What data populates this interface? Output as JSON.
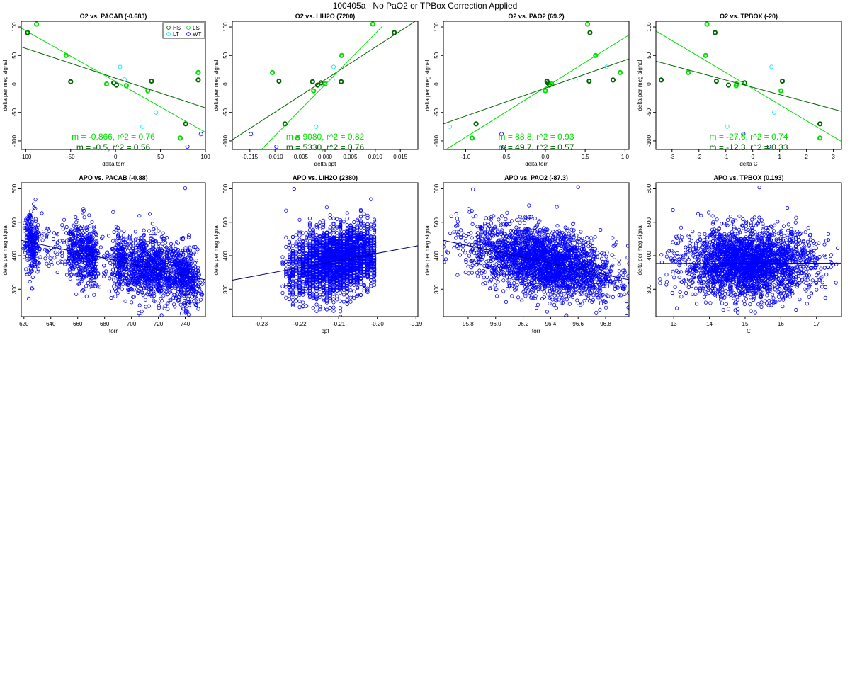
{
  "page": {
    "title": "100405a   No PaO2 or TPBox Correction Applied"
  },
  "colors": {
    "HS": "#006400",
    "LS": "#00e000",
    "LT": "#00e5ee",
    "WT": "#0000ff",
    "fit_dark": "#006400",
    "fit_light": "#00e000",
    "fit_blue": "#00008b"
  },
  "chart_data": [
    {
      "id": "o2-pacab",
      "type": "scatter",
      "title": "O2 vs. PACAB (-0.683)",
      "xlabel": "delta torr",
      "ylabel": "delta per meg signal",
      "xlim": [
        -105,
        100
      ],
      "ylim": [
        -115,
        110
      ],
      "xticks": [
        -100,
        -50,
        0,
        50,
        100
      ],
      "yticks": [
        -100,
        -50,
        0,
        50,
        100
      ],
      "legend": {
        "position": "top-right",
        "entries": [
          "HS",
          "LS",
          "LT",
          "WT"
        ],
        "labels": [
          "HS",
          "LS",
          "LT",
          "WT"
        ]
      },
      "series": [
        {
          "name": "HS",
          "bold": true,
          "points": [
            [
              -98,
              90
            ],
            [
              -50,
              4
            ],
            [
              -2,
              2
            ],
            [
              1,
              -2
            ],
            [
              40,
              5
            ],
            [
              92,
              7
            ],
            [
              78,
              -70
            ]
          ]
        },
        {
          "name": "LS",
          "bold": true,
          "points": [
            [
              -88,
              105
            ],
            [
              -55,
              50
            ],
            [
              -10,
              0
            ],
            [
              12,
              -3
            ],
            [
              36,
              -12
            ],
            [
              92,
              20
            ],
            [
              72,
              -95
            ]
          ]
        },
        {
          "name": "LT",
          "bold": false,
          "points": [
            [
              5,
              30
            ],
            [
              10,
              8
            ],
            [
              30,
              -75
            ],
            [
              45,
              -50
            ]
          ]
        },
        {
          "name": "WT",
          "bold": false,
          "points": [
            [
              95,
              -88
            ],
            [
              80,
              -110
            ]
          ]
        }
      ],
      "fits": [
        {
          "color": "fit_dark",
          "x": [
            -105,
            100
          ],
          "y": [
            65,
            -42
          ]
        },
        {
          "color": "fit_light",
          "x": [
            -105,
            100
          ],
          "y": [
            98,
            -85
          ]
        }
      ],
      "annotations": [
        {
          "text": "m = -0.866, r^2 = 0.76",
          "color": "fit_light"
        },
        {
          "text": "m = -0.5, r^2 = 0.56",
          "color": "fit_dark"
        }
      ]
    },
    {
      "id": "o2-lih2o",
      "type": "scatter",
      "title": "O2 vs. LIH2O (7200)",
      "xlabel": "delta ppt",
      "ylabel": "delta per meg signal",
      "xlim": [
        -0.0185,
        0.0185
      ],
      "ylim": [
        -115,
        110
      ],
      "xticks": [
        -0.015,
        -0.01,
        -0.005,
        0,
        0.005,
        0.01,
        0.015
      ],
      "xtick_labels": [
        "-0.015",
        "-0.010",
        "-0.005",
        "0.000",
        "0.005",
        "0.010",
        "0.015"
      ],
      "yticks": [
        -100,
        -50,
        0,
        50,
        100
      ],
      "series": [
        {
          "name": "HS",
          "bold": true,
          "points": [
            [
              -0.0092,
              5
            ],
            [
              -0.008,
              -70
            ],
            [
              -0.0025,
              4
            ],
            [
              -0.0015,
              -2
            ],
            [
              -0.0008,
              2
            ],
            [
              0.0032,
              4
            ],
            [
              0.0138,
              90
            ]
          ]
        },
        {
          "name": "LS",
          "bold": true,
          "points": [
            [
              -0.0105,
              20
            ],
            [
              -0.0023,
              -12
            ],
            [
              0,
              0
            ],
            [
              0.0033,
              50
            ],
            [
              0.0095,
              105
            ],
            [
              -0.0055,
              -95
            ]
          ]
        },
        {
          "name": "LT",
          "bold": false,
          "points": [
            [
              0.0017,
              30
            ],
            [
              0.0015,
              8
            ],
            [
              -0.0018,
              -75
            ]
          ]
        },
        {
          "name": "WT",
          "bold": false,
          "points": [
            [
              -0.0148,
              -88
            ],
            [
              -0.0097,
              -110
            ]
          ]
        }
      ],
      "fits": [
        {
          "color": "fit_dark",
          "x": [
            -0.0185,
            0.0185
          ],
          "y": [
            -98,
            113
          ]
        },
        {
          "color": "fit_light",
          "x": [
            -0.0138,
            0.0115
          ],
          "y": [
            -125,
            102
          ]
        }
      ],
      "annotations": [
        {
          "text": "m = 9080, r^2 = 0.82",
          "color": "fit_light"
        },
        {
          "text": "m = 5330, r^2 = 0.76",
          "color": "fit_dark"
        }
      ]
    },
    {
      "id": "o2-pao2",
      "type": "scatter",
      "title": "O2 vs. PAO2 (69.2)",
      "xlabel": "delta torr",
      "ylabel": "delta per meg signal",
      "xlim": [
        -1.28,
        1.05
      ],
      "ylim": [
        -115,
        110
      ],
      "xticks": [
        -1,
        -0.5,
        0,
        0.5,
        1
      ],
      "xtick_labels": [
        "-1.0",
        "-0.5",
        "0.0",
        "0.5",
        "1.0"
      ],
      "yticks": [
        -100,
        -50,
        0,
        50,
        100
      ],
      "series": [
        {
          "name": "HS",
          "bold": true,
          "points": [
            [
              -0.87,
              -70
            ],
            [
              0.02,
              5
            ],
            [
              0.03,
              2
            ],
            [
              0.05,
              -2
            ],
            [
              0.55,
              5
            ],
            [
              0.85,
              7
            ],
            [
              0.56,
              90
            ]
          ]
        },
        {
          "name": "LS",
          "bold": true,
          "points": [
            [
              -0.92,
              -95
            ],
            [
              0,
              -12
            ],
            [
              0.08,
              0
            ],
            [
              0.53,
              105
            ],
            [
              0.63,
              50
            ],
            [
              0.94,
              20
            ]
          ]
        },
        {
          "name": "LT",
          "bold": false,
          "points": [
            [
              -1.2,
              -75
            ],
            [
              0.38,
              8
            ],
            [
              0.77,
              30
            ]
          ]
        },
        {
          "name": "WT",
          "bold": false,
          "points": [
            [
              -0.52,
              -110
            ],
            [
              -0.55,
              -88
            ]
          ]
        }
      ],
      "fits": [
        {
          "color": "fit_dark",
          "x": [
            -1.28,
            1.05
          ],
          "y": [
            -70,
            44
          ]
        },
        {
          "color": "fit_light",
          "x": [
            -1.28,
            1.05
          ],
          "y": [
            -118,
            86
          ]
        }
      ],
      "annotations": [
        {
          "text": "m = 88.8, r^2 = 0.93",
          "color": "fit_light"
        },
        {
          "text": "m = 49.7, r^2 = 0.57",
          "color": "fit_dark"
        }
      ]
    },
    {
      "id": "o2-tpbox",
      "type": "scatter",
      "title": "O2 vs. TPBOX (-20)",
      "xlabel": "delta C",
      "ylabel": "delta per meg signal",
      "xlim": [
        -3.6,
        3.3
      ],
      "ylim": [
        -115,
        110
      ],
      "xticks": [
        -3,
        -2,
        -1,
        0,
        1,
        2,
        3
      ],
      "yticks": [
        -100,
        -50,
        0,
        50,
        100
      ],
      "series": [
        {
          "name": "HS",
          "bold": true,
          "points": [
            [
              -3.4,
              7
            ],
            [
              -1.4,
              90
            ],
            [
              -1.35,
              5
            ],
            [
              -0.9,
              -2
            ],
            [
              -0.3,
              2
            ],
            [
              1.1,
              5
            ],
            [
              2.5,
              -70
            ]
          ]
        },
        {
          "name": "LS",
          "bold": true,
          "points": [
            [
              -2.4,
              20
            ],
            [
              -1.7,
              105
            ],
            [
              -1.75,
              50
            ],
            [
              -0.6,
              0
            ],
            [
              -0.62,
              -3
            ],
            [
              1.05,
              -12
            ],
            [
              2.5,
              -95
            ]
          ]
        },
        {
          "name": "LT",
          "bold": false,
          "points": [
            [
              0.7,
              30
            ],
            [
              -0.95,
              -75
            ],
            [
              0.8,
              -50
            ]
          ]
        },
        {
          "name": "WT",
          "bold": false,
          "points": [
            [
              -0.35,
              -88
            ],
            [
              0.6,
              -110
            ]
          ]
        }
      ],
      "fits": [
        {
          "color": "fit_dark",
          "x": [
            -3.6,
            3.3
          ],
          "y": [
            40,
            -48
          ]
        },
        {
          "color": "fit_light",
          "x": [
            -3.6,
            3.3
          ],
          "y": [
            93,
            -101
          ]
        }
      ],
      "annotations": [
        {
          "text": "m = -27.6, r^2 = 0.74",
          "color": "fit_light"
        },
        {
          "text": "m = -12.3, r^2 = 0.33",
          "color": "fit_dark"
        }
      ]
    },
    {
      "id": "apo-pacab",
      "type": "scatter",
      "title": "APO vs. PACAB (-0.88)",
      "xlabel": "torr",
      "ylabel": "delta per meg signal",
      "xlim": [
        618,
        755
      ],
      "ylim": [
        218,
        618
      ],
      "xticks": [
        620,
        640,
        660,
        680,
        700,
        720,
        740
      ],
      "yticks": [
        300,
        400,
        500,
        600
      ],
      "fits": [
        {
          "color": "fit_blue",
          "x": [
            618,
            755
          ],
          "y": [
            446,
            328
          ]
        }
      ],
      "cloud": {
        "color": "WT",
        "n": 2300,
        "clusters": [
          [
            626,
            3,
            0.12
          ],
          [
            656,
            2,
            0.05
          ],
          [
            662,
            2,
            0.06
          ],
          [
            669,
            3,
            0.12
          ],
          [
            691,
            2,
            0.08
          ],
          [
            710,
            10,
            0.3
          ],
          [
            724,
            8,
            0.12
          ],
          [
            741,
            5,
            0.15
          ]
        ],
        "a": 446,
        "b": -0.86,
        "x0": 618,
        "sd": 45,
        "scatter_x": [
          620,
          752,
          0.15
        ],
        "extra_points": [
          [
            740,
            602
          ]
        ]
      }
    },
    {
      "id": "apo-lih2o",
      "type": "scatter",
      "title": "APO vs. LIH2O (2380)",
      "xlabel": "ppt",
      "ylabel": "delta per meg signal",
      "xlim": [
        -0.2375,
        -0.1895
      ],
      "ylim": [
        218,
        618
      ],
      "xticks": [
        -0.23,
        -0.22,
        -0.21,
        -0.2,
        -0.19
      ],
      "xtick_labels": [
        "-0.23",
        "-0.22",
        "-0.21",
        "-0.20",
        "-0.19"
      ],
      "yticks": [
        300,
        400,
        500,
        600
      ],
      "fits": [
        {
          "color": "fit_blue",
          "x": [
            -0.2375,
            -0.1895
          ],
          "y": [
            327,
            430
          ]
        }
      ],
      "cloud": {
        "color": "WT",
        "n": 2500,
        "columns": {
          "start": -0.2245,
          "end": -0.2005,
          "step": 0.00088,
          "center": -0.21,
          "spread": 0.007
        },
        "a": 327,
        "b": 2146,
        "x0": -0.2375,
        "sd": 50,
        "extra_points": [
          [
            -0.2215,
            600
          ]
        ]
      }
    },
    {
      "id": "apo-pao2",
      "type": "scatter",
      "title": "APO vs. PAO2 (-87.3)",
      "xlabel": "torr",
      "ylabel": "delta per meg signal",
      "xlim": [
        95.62,
        96.97
      ],
      "ylim": [
        218,
        618
      ],
      "xticks": [
        95.8,
        96,
        96.2,
        96.4,
        96.6,
        96.8
      ],
      "xtick_labels": [
        "95.8",
        "96.0",
        "96.2",
        "96.4",
        "96.6",
        "96.8"
      ],
      "yticks": [
        300,
        400,
        500,
        600
      ],
      "fits": [
        {
          "color": "fit_blue",
          "x": [
            95.62,
            96.97
          ],
          "y": [
            446,
            328
          ]
        }
      ],
      "cloud": {
        "color": "WT",
        "n": 2600,
        "normal": {
          "center": 96.35,
          "spread": 0.26
        },
        "a": 446,
        "b": -87.3,
        "x0": 95.62,
        "sd": 48,
        "extra_points": [
          [
            96.6,
            605
          ]
        ]
      }
    },
    {
      "id": "apo-tpbox",
      "type": "scatter",
      "title": "APO vs. TPBOX (0.193)",
      "xlabel": "C",
      "ylabel": "delta per meg signal",
      "xlim": [
        12.5,
        17.7
      ],
      "ylim": [
        218,
        618
      ],
      "xticks": [
        13,
        14,
        15,
        16,
        17
      ],
      "yticks": [
        300,
        400,
        500,
        600
      ],
      "fits": [
        {
          "color": "fit_blue",
          "x": [
            12.5,
            17.7
          ],
          "y": [
            377,
            378
          ]
        }
      ],
      "cloud": {
        "color": "WT",
        "n": 2600,
        "normal": {
          "center": 15.1,
          "spread": 0.9
        },
        "a": 377,
        "b": 0.193,
        "x0": 12.5,
        "sd": 50,
        "extra_points": [
          [
            15.4,
            604
          ]
        ]
      }
    }
  ]
}
